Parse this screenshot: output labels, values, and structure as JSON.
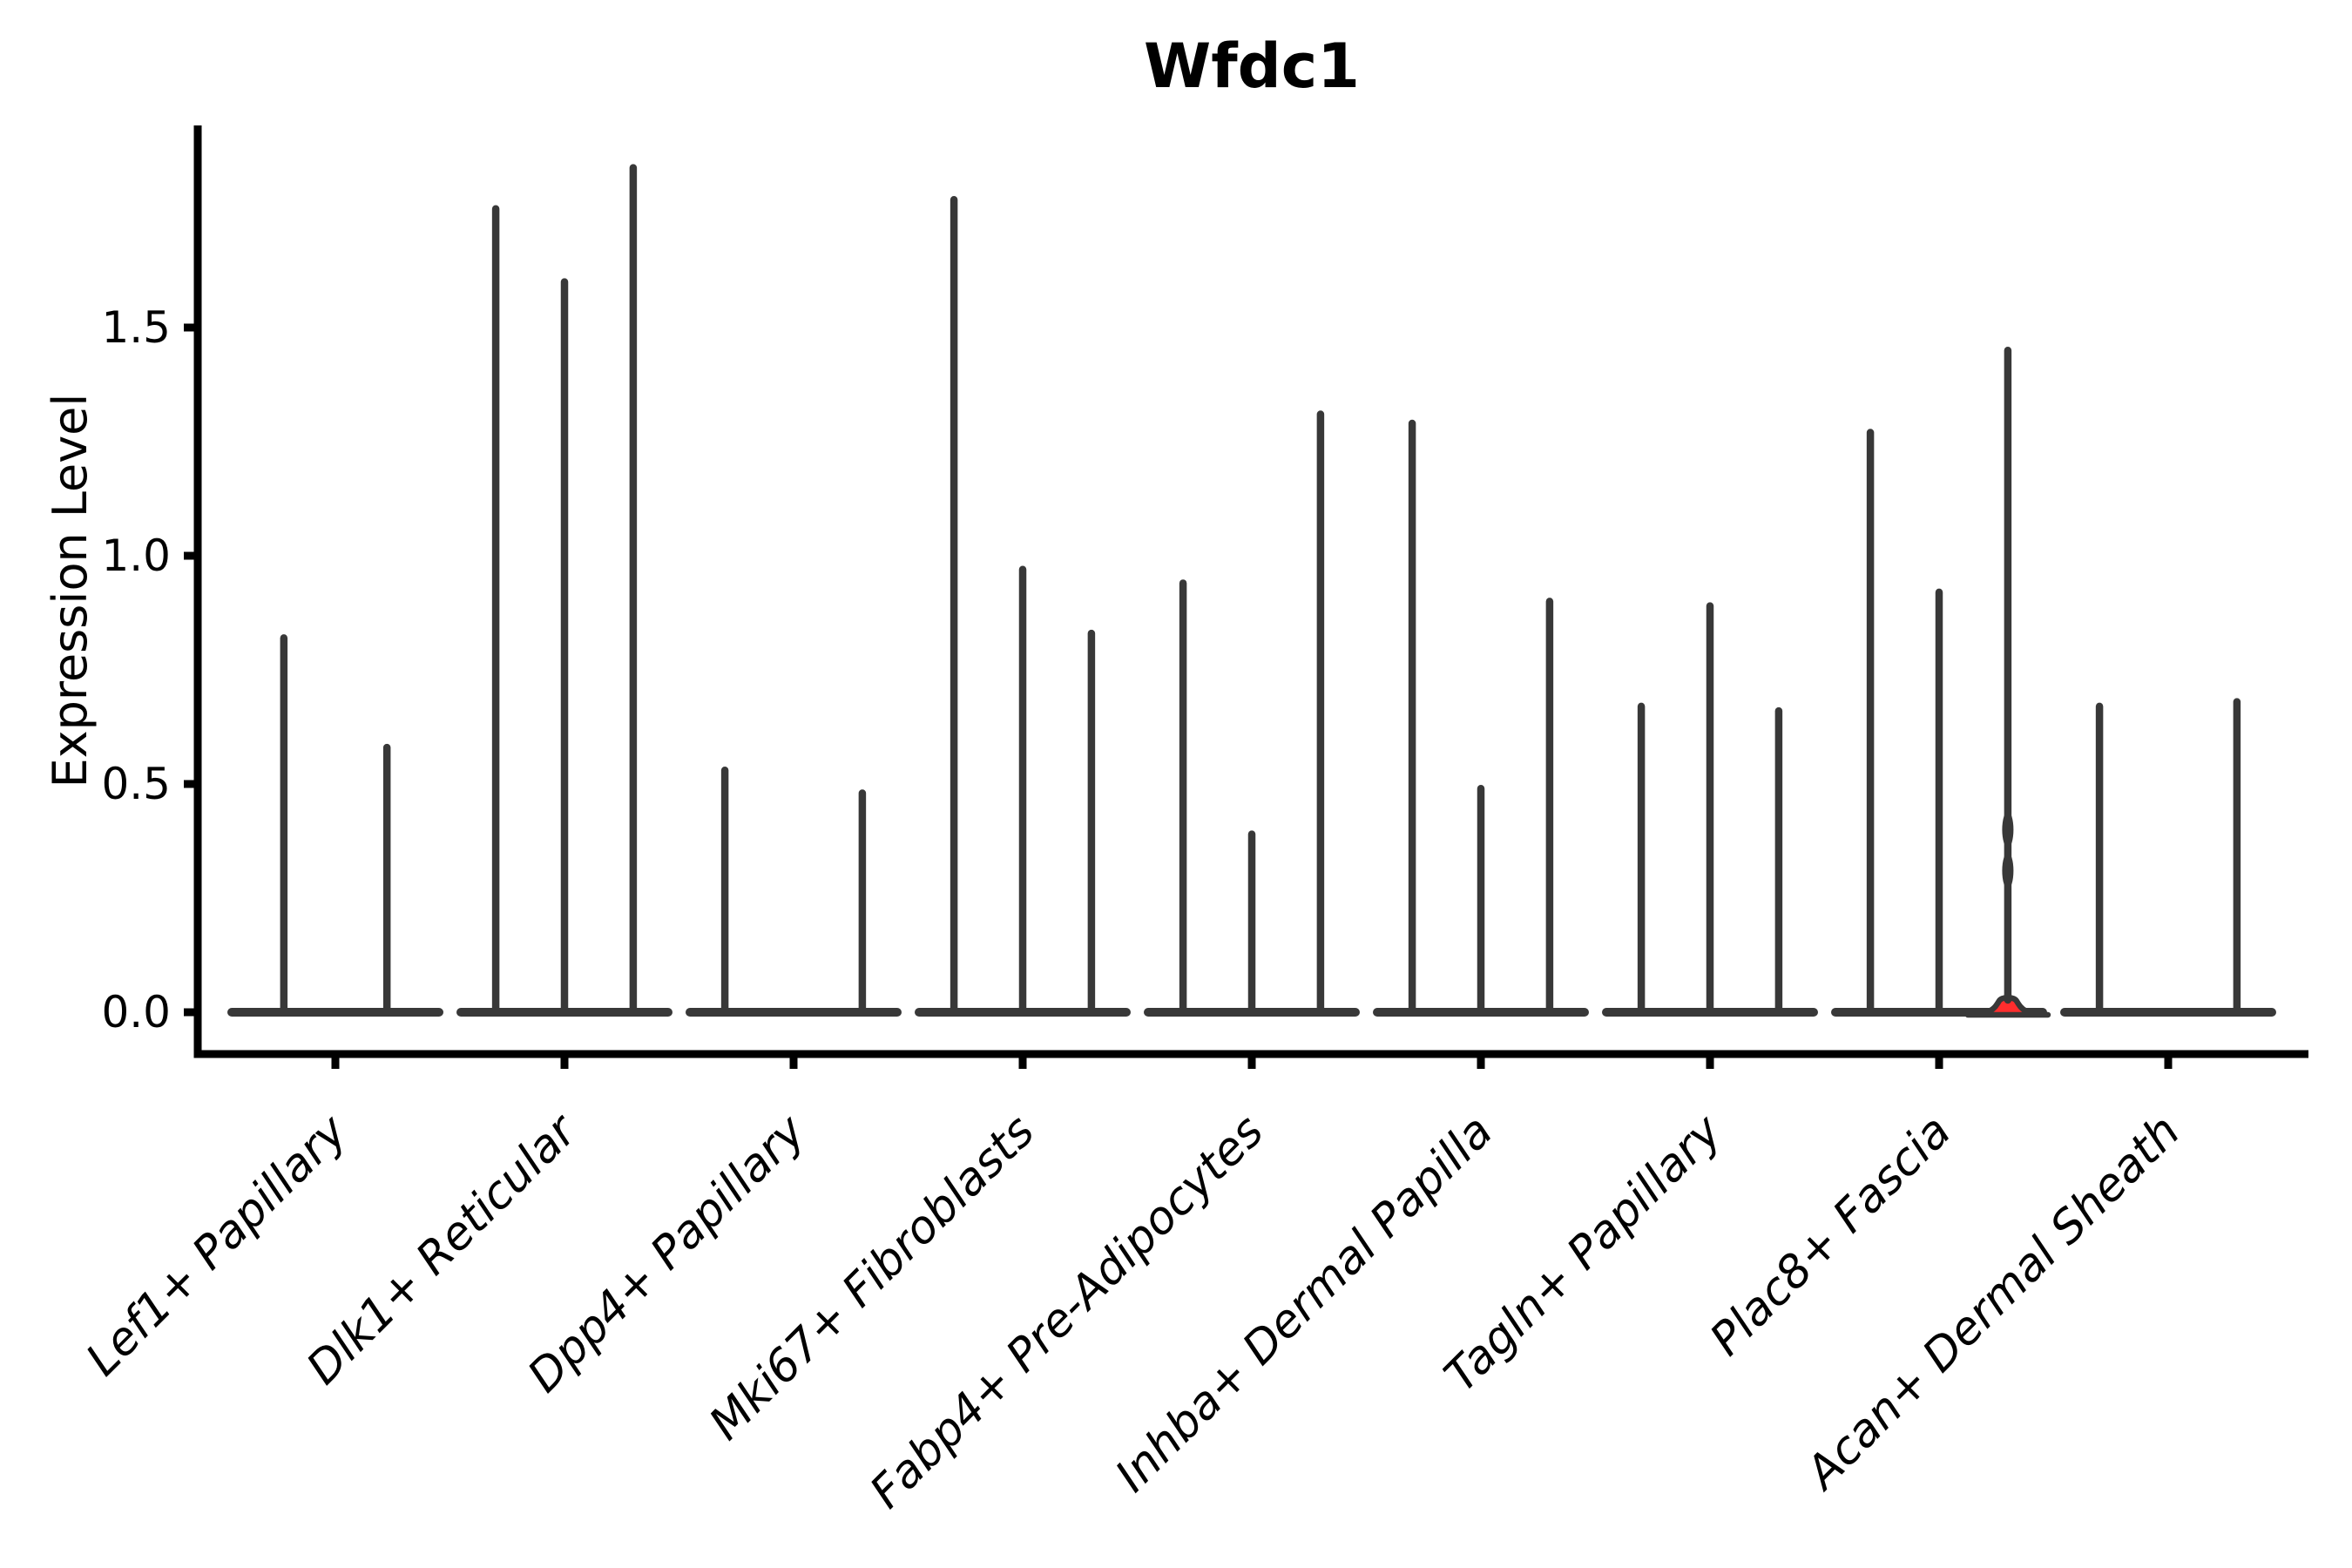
{
  "chart_data": {
    "type": "violin",
    "title": "Wfdc1",
    "ylabel": "Expression Level",
    "xlabel": "",
    "grid": false,
    "legend": null,
    "ylim": [
      -0.09,
      1.94
    ],
    "y_ticks": [
      "0.0",
      "0.5",
      "1.0",
      "1.5"
    ],
    "y_tick_values": [
      0,
      0.5,
      1.0,
      1.5
    ],
    "categories": [
      "Lef1+ Papillary",
      "Dlk1+ Reticular",
      "Dpp4+ Papillary",
      "Mki67+ Fibroblasts",
      "Fabp4+ Pre-Adipocytes",
      "Inhba+ Dermal Papilla",
      "Tagln+ Papillary",
      "Plac8+ Fascia",
      "Acan+ Dermal Sheath"
    ],
    "groups": [
      {
        "category": "Lef1+ Papillary",
        "violins": [
          {
            "offset": -0.225,
            "max": 0.82
          },
          {
            "offset": 0.225,
            "max": 0.58
          }
        ]
      },
      {
        "category": "Dlk1+ Reticular",
        "violins": [
          {
            "offset": -0.3,
            "max": 1.76
          },
          {
            "offset": 0,
            "max": 1.6
          },
          {
            "offset": 0.3,
            "max": 1.85
          }
        ]
      },
      {
        "category": "Dpp4+ Papillary",
        "violins": [
          {
            "offset": -0.3,
            "max": 0.53
          },
          {
            "offset": 0,
            "max": 0
          },
          {
            "offset": 0.3,
            "max": 0.48
          }
        ]
      },
      {
        "category": "Mki67+ Fibroblasts",
        "violins": [
          {
            "offset": -0.3,
            "max": 1.78
          },
          {
            "offset": 0,
            "max": 0.97
          },
          {
            "offset": 0.3,
            "max": 0.83
          }
        ]
      },
      {
        "category": "Fabp4+ Pre-Adipocytes",
        "violins": [
          {
            "offset": -0.3,
            "max": 0.94
          },
          {
            "offset": 0,
            "max": 0.39
          },
          {
            "offset": 0.3,
            "max": 1.31
          }
        ]
      },
      {
        "category": "Inhba+ Dermal Papilla",
        "violins": [
          {
            "offset": -0.3,
            "max": 1.29
          },
          {
            "offset": 0,
            "max": 0.49
          },
          {
            "offset": 0.3,
            "max": 0.9
          }
        ]
      },
      {
        "category": "Tagln+ Papillary",
        "violins": [
          {
            "offset": -0.3,
            "max": 0.67
          },
          {
            "offset": 0,
            "max": 0.89
          },
          {
            "offset": 0.3,
            "max": 0.66
          }
        ]
      },
      {
        "category": "Plac8+ Fascia",
        "violins": [
          {
            "offset": -0.3,
            "max": 1.27
          },
          {
            "offset": 0,
            "max": 0.92
          },
          {
            "offset": 0.3,
            "max": 1.45,
            "highlight": true,
            "base_bulge": 0.035,
            "knots": [
              0.4,
              0.31
            ]
          }
        ]
      },
      {
        "category": "Acan+ Dermal Sheath",
        "violins": [
          {
            "offset": -0.3,
            "max": 0.67
          },
          {
            "offset": 0,
            "max": 0
          },
          {
            "offset": 0.3,
            "max": 0.68
          }
        ]
      }
    ],
    "colors": {
      "violin": "#383838",
      "highlight_fill": "#ff2d2d",
      "axis": "#000000",
      "background": "#ffffff"
    }
  }
}
